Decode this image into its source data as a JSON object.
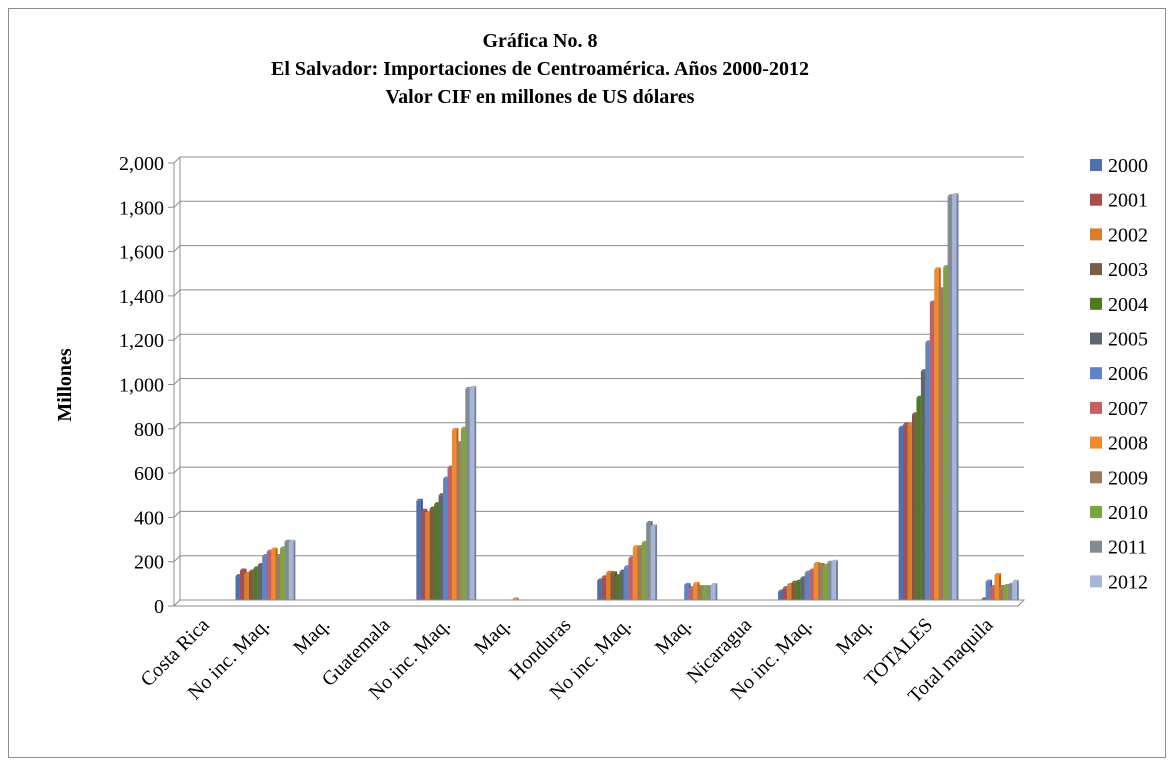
{
  "chart_data": {
    "type": "bar",
    "title": [
      "Gráfica No. 8",
      "El Salvador: Importaciones de Centroamérica. Años 2000-2012",
      "Valor CIF en millones de US dólares"
    ],
    "xlabel": "",
    "ylabel": "Millones",
    "ylim": [
      0,
      2000
    ],
    "ytick_values": [
      0,
      200,
      400,
      600,
      800,
      1000,
      1200,
      1400,
      1600,
      1800,
      2000
    ],
    "ytick_labels": [
      "0",
      "200",
      "400",
      "600",
      "800",
      "1,000",
      "1,200",
      "1,400",
      "1,600",
      "1,800",
      "2,000"
    ],
    "grid": true,
    "legend_position": "right",
    "categories": [
      "Costa Rica",
      "No inc. Maq.",
      "Maq.",
      "Guatemala",
      "No inc. Maq.",
      "Maq.",
      "Honduras",
      "No inc. Maq.",
      "Maq.",
      "Nicaragua",
      "No inc. Maq.",
      "Maq.",
      "TOTALES",
      "Total maquila"
    ],
    "series": [
      {
        "name": "2000",
        "color": "#4f6fae",
        "values": [
          0,
          135,
          2,
          0,
          475,
          5,
          0,
          115,
          10,
          0,
          65,
          2,
          805,
          5
        ]
      },
      {
        "name": "2001",
        "color": "#a84f4c",
        "values": [
          0,
          160,
          2,
          0,
          430,
          8,
          0,
          130,
          10,
          0,
          80,
          2,
          820,
          5
        ]
      },
      {
        "name": "2002",
        "color": "#d97f2b",
        "values": [
          0,
          145,
          2,
          0,
          420,
          10,
          0,
          150,
          15,
          0,
          95,
          2,
          820,
          5
        ]
      },
      {
        "name": "2003",
        "color": "#7a5c44",
        "values": [
          0,
          155,
          2,
          0,
          440,
          12,
          0,
          148,
          12,
          0,
          105,
          2,
          865,
          5
        ]
      },
      {
        "name": "2004",
        "color": "#4e7a21",
        "values": [
          0,
          170,
          2,
          0,
          460,
          10,
          0,
          135,
          10,
          0,
          110,
          2,
          940,
          10
        ]
      },
      {
        "name": "2005",
        "color": "#5f6670",
        "values": [
          0,
          185,
          2,
          0,
          500,
          12,
          0,
          155,
          15,
          0,
          125,
          2,
          1060,
          30
        ]
      },
      {
        "name": "2006",
        "color": "#5f84c6",
        "values": [
          0,
          225,
          2,
          0,
          575,
          15,
          0,
          175,
          95,
          0,
          150,
          2,
          1190,
          110
        ]
      },
      {
        "name": "2007",
        "color": "#c4605d",
        "values": [
          0,
          245,
          2,
          0,
          625,
          10,
          0,
          215,
          80,
          0,
          160,
          2,
          1370,
          85
        ]
      },
      {
        "name": "2008",
        "color": "#f08a2c",
        "values": [
          0,
          255,
          2,
          0,
          795,
          30,
          0,
          265,
          100,
          0,
          190,
          2,
          1520,
          140
        ]
      },
      {
        "name": "2009",
        "color": "#9a7b5e",
        "values": [
          0,
          225,
          2,
          0,
          735,
          8,
          0,
          265,
          85,
          0,
          185,
          2,
          1430,
          85
        ]
      },
      {
        "name": "2010",
        "color": "#7ea53a",
        "values": [
          0,
          260,
          2,
          0,
          800,
          8,
          0,
          285,
          85,
          0,
          180,
          2,
          1530,
          90
        ]
      },
      {
        "name": "2011",
        "color": "#848a93",
        "values": [
          0,
          290,
          2,
          0,
          980,
          5,
          0,
          375,
          85,
          0,
          195,
          2,
          1850,
          95
        ]
      },
      {
        "name": "2012",
        "color": "#a6b6d8",
        "values": [
          0,
          290,
          2,
          0,
          985,
          10,
          0,
          360,
          95,
          0,
          200,
          2,
          1855,
          110
        ]
      }
    ]
  }
}
